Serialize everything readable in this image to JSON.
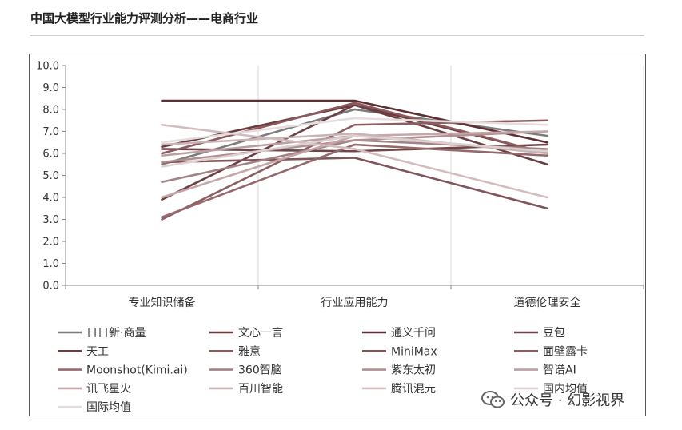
{
  "page": {
    "title": "中国大模型行业能力评测分析——电商行业",
    "watermark": "公众号 · 幻影视界"
  },
  "chart_data": {
    "type": "line",
    "categories": [
      "专业知识储备",
      "行业应用能力",
      "道德伦理安全"
    ],
    "ylim": [
      0,
      10
    ],
    "yticks": [
      "0.0",
      "1.0",
      "2.0",
      "3.0",
      "4.0",
      "5.0",
      "6.0",
      "7.0",
      "8.0",
      "9.0",
      "10.0"
    ],
    "grid": "vertical",
    "legend_position": "bottom",
    "series": [
      {
        "name": "日日新·商量",
        "values": [
          5.5,
          8.0,
          6.8
        ],
        "color": "#7c7c7c"
      },
      {
        "name": "文心一言",
        "values": [
          6.3,
          8.2,
          6.0
        ],
        "color": "#6a3b3d"
      },
      {
        "name": "通义千问",
        "values": [
          8.4,
          8.4,
          6.5
        ],
        "color": "#5e2f33"
      },
      {
        "name": "豆包",
        "values": [
          6.2,
          6.1,
          6.4
        ],
        "color": "#6f4548"
      },
      {
        "name": "天工",
        "values": [
          3.9,
          8.2,
          5.5
        ],
        "color": "#6b3f42"
      },
      {
        "name": "雅意",
        "values": [
          6.0,
          8.3,
          6.0
        ],
        "color": "#8a5a5d"
      },
      {
        "name": "MiniMax",
        "values": [
          5.6,
          5.8,
          3.5
        ],
        "color": "#805559"
      },
      {
        "name": "面壁露卡",
        "values": [
          3.0,
          7.3,
          7.5
        ],
        "color": "#8b5f62"
      },
      {
        "name": "Moonshot(Kimi.ai)",
        "values": [
          3.1,
          6.4,
          5.9
        ],
        "color": "#95696c"
      },
      {
        "name": "360智脑",
        "values": [
          4.7,
          6.6,
          6.2
        ],
        "color": "#a38285"
      },
      {
        "name": "紫东太初",
        "values": [
          5.6,
          6.6,
          7.0
        ],
        "color": "#b08f92"
      },
      {
        "name": "智谱AI",
        "values": [
          5.9,
          6.8,
          6.1
        ],
        "color": "#b9a0a3"
      },
      {
        "name": "讯飞星火",
        "values": [
          4.0,
          6.8,
          7.0
        ],
        "color": "#c6a7a9"
      },
      {
        "name": "百川智能",
        "values": [
          6.4,
          6.9,
          6.0
        ],
        "color": "#c9b3b5"
      },
      {
        "name": "腾讯混元",
        "values": [
          7.3,
          6.2,
          4.0
        ],
        "color": "#d2bcbe"
      },
      {
        "name": "国内均值",
        "values": [
          5.4,
          6.8,
          6.1
        ],
        "color": "#ddd0d1"
      },
      {
        "name": "国际均值",
        "values": [
          6.5,
          7.6,
          7.3
        ],
        "color": "#e6dcdd"
      }
    ]
  }
}
